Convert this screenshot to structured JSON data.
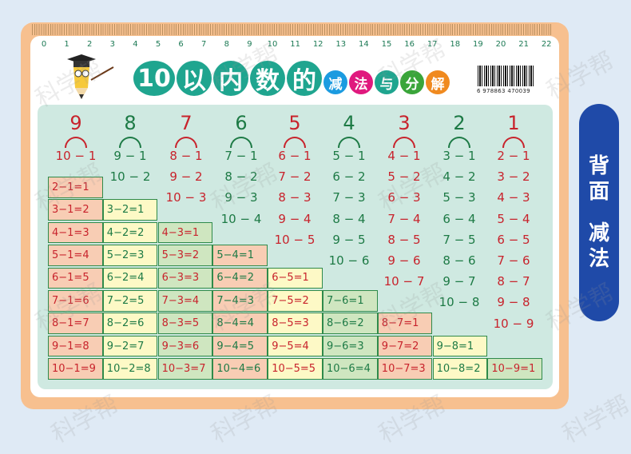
{
  "ruler": {
    "labels": [
      "0",
      "1",
      "2",
      "3",
      "4",
      "5",
      "6",
      "7",
      "8",
      "9",
      "10",
      "11",
      "12",
      "13",
      "14",
      "15",
      "16",
      "17",
      "18",
      "19",
      "20",
      "21",
      "22"
    ]
  },
  "title": {
    "main": [
      "10",
      "以",
      "内",
      "数",
      "的"
    ],
    "sub": [
      "减",
      "法",
      "与",
      "分",
      "解"
    ],
    "sub_colors": [
      "#1b9be0",
      "#e0197e",
      "#1fa58f",
      "#3aa53a",
      "#f08a1f"
    ]
  },
  "barcode": {
    "number": "6 978863 470039"
  },
  "watermark": "科学帮",
  "badge": {
    "line1": "背面",
    "line2": "减法",
    "color": "#1f4aa8"
  },
  "colors": {
    "red": "#c8232c",
    "green": "#1d7a45",
    "cell_bg": [
      "#f8cdb4",
      "#fdf9c6",
      "#cfe6c0"
    ]
  },
  "decompositions": [
    {
      "number": "9",
      "exprs": [
        "10 − 1"
      ]
    },
    {
      "number": "8",
      "exprs": [
        "9 − 1",
        "10 − 2"
      ]
    },
    {
      "number": "7",
      "exprs": [
        "8 − 1",
        "9 − 2",
        "10 − 3"
      ]
    },
    {
      "number": "6",
      "exprs": [
        "7 − 1",
        "8 − 2",
        "9 − 3",
        "10 − 4"
      ]
    },
    {
      "number": "5",
      "exprs": [
        "6 − 1",
        "7 − 2",
        "8 − 3",
        "9 − 4",
        "10 − 5"
      ]
    },
    {
      "number": "4",
      "exprs": [
        "5 − 1",
        "6 − 2",
        "7 − 3",
        "8 − 4",
        "9 − 5",
        "10 − 6"
      ]
    },
    {
      "number": "3",
      "exprs": [
        "4 − 1",
        "5 − 2",
        "6 − 3",
        "7 − 4",
        "8 − 5",
        "9 − 6",
        "10 − 7"
      ]
    },
    {
      "number": "2",
      "exprs": [
        "3 − 1",
        "4 − 2",
        "5 − 3",
        "6 − 4",
        "7 − 5",
        "8 − 6",
        "9 − 7",
        "10 − 8"
      ]
    },
    {
      "number": "1",
      "exprs": [
        "2 − 1",
        "3 − 2",
        "4 − 3",
        "5 − 4",
        "6 − 5",
        "7 − 6",
        "8 − 7",
        "9 − 8",
        "10 − 9"
      ]
    }
  ],
  "table": [
    [
      "2−1=1"
    ],
    [
      "3−1=2",
      "3−2=1"
    ],
    [
      "4−1=3",
      "4−2=2",
      "4−3=1"
    ],
    [
      "5−1=4",
      "5−2=3",
      "5−3=2",
      "5−4=1"
    ],
    [
      "6−1=5",
      "6−2=4",
      "6−3=3",
      "6−4=2",
      "6−5=1"
    ],
    [
      "7−1=6",
      "7−2=5",
      "7−3=4",
      "7−4=3",
      "7−5=2",
      "7−6=1"
    ],
    [
      "8−1=7",
      "8−2=6",
      "8−3=5",
      "8−4=4",
      "8−5=3",
      "8−6=2",
      "8−7=1"
    ],
    [
      "9−1=8",
      "9−2=7",
      "9−3=6",
      "9−4=5",
      "9−5=4",
      "9−6=3",
      "9−7=2",
      "9−8=1"
    ],
    [
      "10−1=9",
      "10−2=8",
      "10−3=7",
      "10−4=6",
      "10−5=5",
      "10−6=4",
      "10−7=3",
      "10−8=2",
      "10−9=1"
    ]
  ]
}
